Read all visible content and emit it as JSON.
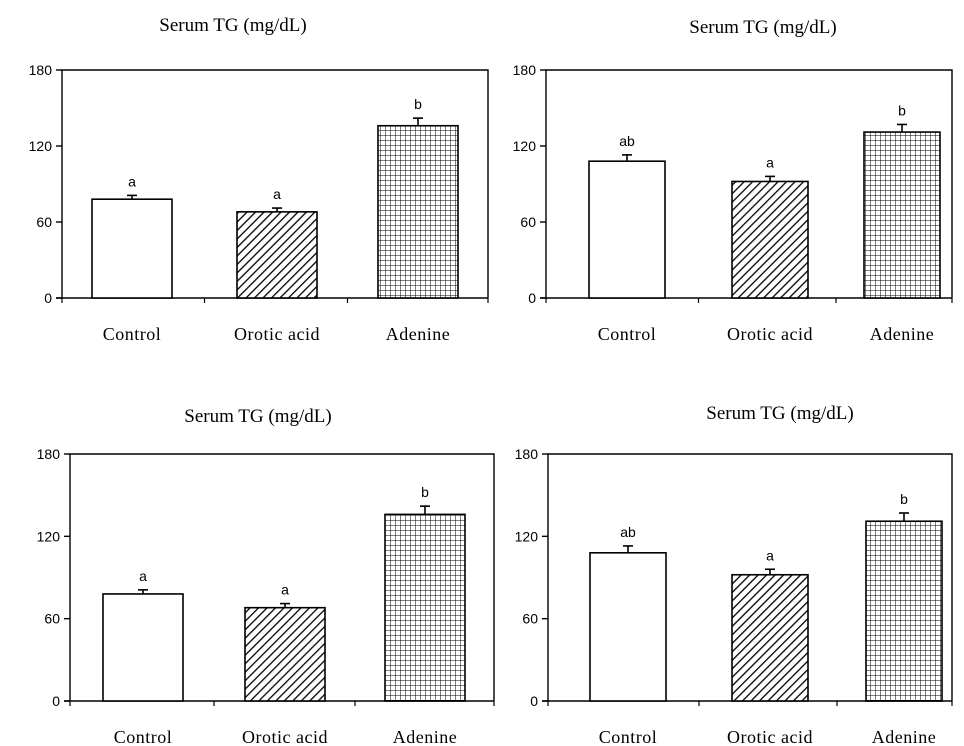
{
  "chart_data": [
    {
      "type": "bar",
      "title": "Serum TG (mg/dL)",
      "categories": [
        "Control",
        "Orotic acid",
        "Adenine"
      ],
      "values": [
        78,
        68,
        136
      ],
      "errors": [
        3,
        3,
        6
      ],
      "significance": [
        "a",
        "a",
        "b"
      ],
      "ylim": [
        0,
        180
      ],
      "yticks": [
        "0",
        "60",
        "120",
        "180"
      ],
      "patterns": [
        "none",
        "diagonal",
        "grid"
      ]
    },
    {
      "type": "bar",
      "title": "Serum TG (mg/dL)",
      "categories": [
        "Control",
        "Orotic acid",
        "Adenine"
      ],
      "values": [
        108,
        92,
        131
      ],
      "errors": [
        5,
        4,
        6
      ],
      "significance": [
        "ab",
        "a",
        "b"
      ],
      "ylim": [
        0,
        180
      ],
      "yticks": [
        "0",
        "60",
        "120",
        "180"
      ],
      "patterns": [
        "none",
        "diagonal",
        "grid"
      ]
    },
    {
      "type": "bar",
      "title": "Serum TG (mg/dL)",
      "categories": [
        "Control",
        "Orotic acid",
        "Adenine"
      ],
      "values": [
        78,
        68,
        136
      ],
      "errors": [
        3,
        3,
        6
      ],
      "significance": [
        "a",
        "a",
        "b"
      ],
      "ylim": [
        0,
        180
      ],
      "yticks": [
        "0",
        "60",
        "120",
        "180"
      ],
      "patterns": [
        "none",
        "diagonal",
        "grid"
      ]
    },
    {
      "type": "bar",
      "title": "Serum TG (mg/dL)",
      "categories": [
        "Control",
        "Orotic acid",
        "Adenine"
      ],
      "values": [
        108,
        92,
        131
      ],
      "errors": [
        5,
        4,
        6
      ],
      "significance": [
        "ab",
        "a",
        "b"
      ],
      "ylim": [
        0,
        180
      ],
      "yticks": [
        "0",
        "60",
        "120",
        "180"
      ],
      "patterns": [
        "none",
        "diagonal",
        "grid"
      ]
    }
  ]
}
